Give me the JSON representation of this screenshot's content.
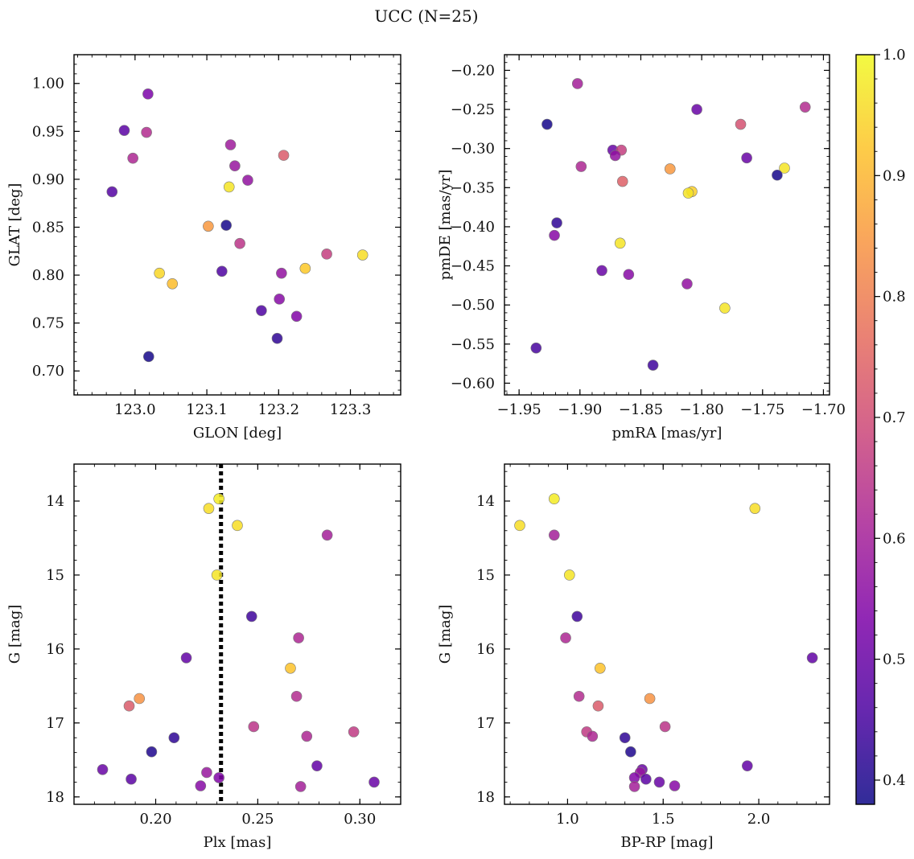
{
  "title": "UCC (N=25)",
  "chart_data": {
    "type": "scatter",
    "title": "UCC (N=25)",
    "colorbar": {
      "colormap": "plasma",
      "range": [
        0.38,
        1.0
      ],
      "ticks": [
        0.4,
        0.5,
        0.6,
        0.7,
        0.8,
        0.9,
        1.0
      ],
      "tick_labels": [
        "0.4",
        "0.5",
        "0.6",
        "0.7",
        "0.8",
        "0.9",
        "1.0"
      ]
    },
    "panels": [
      {
        "xlabel": "GLON [deg]",
        "ylabel": "GLAT [deg]",
        "xlim": [
          122.915,
          123.37
        ],
        "ylim": [
          0.675,
          1.03
        ],
        "y_inverted": false,
        "grid": false,
        "xticks": [
          123.0,
          123.1,
          123.2,
          123.3
        ],
        "xtick_labels": [
          "123.0",
          "123.1",
          "123.2",
          "123.3"
        ],
        "xminor_step": 0.02,
        "yticks": [
          0.7,
          0.75,
          0.8,
          0.85,
          0.9,
          0.95,
          1.0
        ],
        "ytick_labels": [
          "0.70",
          "0.75",
          "0.80",
          "0.85",
          "0.90",
          "0.95",
          "1.00"
        ],
        "yminor_step": 0.01,
        "points": [
          {
            "x": 123.018,
            "y": 0.989,
            "c": 0.53
          },
          {
            "x": 122.985,
            "y": 0.951,
            "c": 0.48
          },
          {
            "x": 123.016,
            "y": 0.949,
            "c": 0.63
          },
          {
            "x": 122.997,
            "y": 0.922,
            "c": 0.62
          },
          {
            "x": 123.133,
            "y": 0.936,
            "c": 0.59
          },
          {
            "x": 123.207,
            "y": 0.925,
            "c": 0.73
          },
          {
            "x": 123.139,
            "y": 0.914,
            "c": 0.58
          },
          {
            "x": 123.157,
            "y": 0.899,
            "c": 0.57
          },
          {
            "x": 123.131,
            "y": 0.892,
            "c": 0.97
          },
          {
            "x": 122.968,
            "y": 0.887,
            "c": 0.47
          },
          {
            "x": 123.127,
            "y": 0.852,
            "c": 0.39
          },
          {
            "x": 123.102,
            "y": 0.851,
            "c": 0.85
          },
          {
            "x": 123.146,
            "y": 0.833,
            "c": 0.65
          },
          {
            "x": 123.267,
            "y": 0.822,
            "c": 0.67
          },
          {
            "x": 123.317,
            "y": 0.821,
            "c": 0.96
          },
          {
            "x": 123.237,
            "y": 0.807,
            "c": 0.93
          },
          {
            "x": 123.121,
            "y": 0.804,
            "c": 0.46
          },
          {
            "x": 123.034,
            "y": 0.802,
            "c": 0.95
          },
          {
            "x": 123.204,
            "y": 0.802,
            "c": 0.57
          },
          {
            "x": 123.052,
            "y": 0.791,
            "c": 0.91
          },
          {
            "x": 123.201,
            "y": 0.775,
            "c": 0.55
          },
          {
            "x": 123.176,
            "y": 0.763,
            "c": 0.46
          },
          {
            "x": 123.225,
            "y": 0.757,
            "c": 0.54
          },
          {
            "x": 123.198,
            "y": 0.734,
            "c": 0.42
          },
          {
            "x": 123.019,
            "y": 0.715,
            "c": 0.39
          }
        ]
      },
      {
        "xlabel": "pmRA [mas/yr]",
        "ylabel": "pmDE [mas/yr]",
        "xlim": [
          -1.962,
          -1.695
        ],
        "ylim": [
          -0.615,
          -0.18
        ],
        "y_inverted": false,
        "grid": false,
        "xticks": [
          -1.95,
          -1.9,
          -1.85,
          -1.8,
          -1.75,
          -1.7
        ],
        "xtick_labels": [
          "−1.95",
          "−1.90",
          "−1.85",
          "−1.80",
          "−1.75",
          "−1.70"
        ],
        "xminor_step": 0.01,
        "yticks": [
          -0.6,
          -0.55,
          -0.5,
          -0.45,
          -0.4,
          -0.35,
          -0.3,
          -0.25,
          -0.2
        ],
        "ytick_labels": [
          "−0.60",
          "−0.55",
          "−0.50",
          "−0.45",
          "−0.40",
          "−0.35",
          "−0.30",
          "−0.25",
          "−0.20"
        ],
        "yminor_step": 0.01,
        "points": [
          {
            "x": -1.902,
            "y": -0.217,
            "c": 0.6
          },
          {
            "x": -1.927,
            "y": -0.269,
            "c": 0.39
          },
          {
            "x": -1.804,
            "y": -0.25,
            "c": 0.5
          },
          {
            "x": -1.715,
            "y": -0.247,
            "c": 0.63
          },
          {
            "x": -1.768,
            "y": -0.269,
            "c": 0.71
          },
          {
            "x": -1.873,
            "y": -0.302,
            "c": 0.5
          },
          {
            "x": -1.866,
            "y": -0.302,
            "c": 0.67
          },
          {
            "x": -1.871,
            "y": -0.309,
            "c": 0.57
          },
          {
            "x": -1.763,
            "y": -0.312,
            "c": 0.5
          },
          {
            "x": -1.899,
            "y": -0.323,
            "c": 0.62
          },
          {
            "x": -1.826,
            "y": -0.326,
            "c": 0.85
          },
          {
            "x": -1.732,
            "y": -0.325,
            "c": 0.97
          },
          {
            "x": -1.738,
            "y": -0.334,
            "c": 0.39
          },
          {
            "x": -1.865,
            "y": -0.342,
            "c": 0.74
          },
          {
            "x": -1.808,
            "y": -0.355,
            "c": 0.94
          },
          {
            "x": -1.811,
            "y": -0.357,
            "c": 0.97
          },
          {
            "x": -1.919,
            "y": -0.395,
            "c": 0.42
          },
          {
            "x": -1.921,
            "y": -0.411,
            "c": 0.55
          },
          {
            "x": -1.867,
            "y": -0.421,
            "c": 0.97
          },
          {
            "x": -1.882,
            "y": -0.456,
            "c": 0.5
          },
          {
            "x": -1.86,
            "y": -0.461,
            "c": 0.55
          },
          {
            "x": -1.812,
            "y": -0.473,
            "c": 0.57
          },
          {
            "x": -1.781,
            "y": -0.504,
            "c": 0.97
          },
          {
            "x": -1.936,
            "y": -0.555,
            "c": 0.45
          },
          {
            "x": -1.84,
            "y": -0.577,
            "c": 0.44
          }
        ]
      },
      {
        "xlabel": "Plx [mas]",
        "ylabel": "G [mag]",
        "xlim": [
          0.16,
          0.32
        ],
        "ylim": [
          18.1,
          13.5
        ],
        "y_inverted": true,
        "grid": false,
        "xticks": [
          0.2,
          0.25,
          0.3
        ],
        "xtick_labels": [
          "0.20",
          "0.25",
          "0.30"
        ],
        "xminor_step": 0.01,
        "yticks": [
          14,
          15,
          16,
          17,
          18
        ],
        "ytick_labels": [
          "14",
          "15",
          "16",
          "17",
          "18"
        ],
        "yminor_step": 0.2,
        "vline": {
          "x": 0.232,
          "style": "dotted",
          "color": "#000000"
        },
        "points": [
          {
            "x": 0.231,
            "y": 13.97,
            "c": 0.98
          },
          {
            "x": 0.226,
            "y": 14.1,
            "c": 0.96
          },
          {
            "x": 0.24,
            "y": 14.33,
            "c": 0.96
          },
          {
            "x": 0.284,
            "y": 14.46,
            "c": 0.6
          },
          {
            "x": 0.23,
            "y": 15.0,
            "c": 0.97
          },
          {
            "x": 0.247,
            "y": 15.56,
            "c": 0.44
          },
          {
            "x": 0.27,
            "y": 15.85,
            "c": 0.62
          },
          {
            "x": 0.215,
            "y": 16.12,
            "c": 0.49
          },
          {
            "x": 0.266,
            "y": 16.26,
            "c": 0.92
          },
          {
            "x": 0.269,
            "y": 16.64,
            "c": 0.63
          },
          {
            "x": 0.192,
            "y": 16.67,
            "c": 0.84
          },
          {
            "x": 0.187,
            "y": 16.77,
            "c": 0.73
          },
          {
            "x": 0.248,
            "y": 17.05,
            "c": 0.65
          },
          {
            "x": 0.297,
            "y": 17.12,
            "c": 0.66
          },
          {
            "x": 0.274,
            "y": 17.18,
            "c": 0.62
          },
          {
            "x": 0.209,
            "y": 17.2,
            "c": 0.42
          },
          {
            "x": 0.198,
            "y": 17.39,
            "c": 0.4
          },
          {
            "x": 0.279,
            "y": 17.58,
            "c": 0.49
          },
          {
            "x": 0.174,
            "y": 17.63,
            "c": 0.5
          },
          {
            "x": 0.225,
            "y": 17.67,
            "c": 0.58
          },
          {
            "x": 0.231,
            "y": 17.74,
            "c": 0.54
          },
          {
            "x": 0.188,
            "y": 17.76,
            "c": 0.48
          },
          {
            "x": 0.307,
            "y": 17.8,
            "c": 0.5
          },
          {
            "x": 0.222,
            "y": 17.85,
            "c": 0.55
          },
          {
            "x": 0.271,
            "y": 17.86,
            "c": 0.6
          }
        ]
      },
      {
        "xlabel": "BP-RP [mag]",
        "ylabel": "G [mag]",
        "xlim": [
          0.67,
          2.37
        ],
        "ylim": [
          18.1,
          13.5
        ],
        "y_inverted": true,
        "grid": false,
        "xticks": [
          1.0,
          1.5,
          2.0
        ],
        "xtick_labels": [
          "1.0",
          "1.5",
          "2.0"
        ],
        "xminor_step": 0.1,
        "yticks": [
          14,
          15,
          16,
          17,
          18
        ],
        "ytick_labels": [
          "14",
          "15",
          "16",
          "17",
          "18"
        ],
        "yminor_step": 0.2,
        "points": [
          {
            "x": 0.93,
            "y": 13.97,
            "c": 0.98
          },
          {
            "x": 1.98,
            "y": 14.1,
            "c": 0.96
          },
          {
            "x": 0.75,
            "y": 14.33,
            "c": 0.96
          },
          {
            "x": 0.93,
            "y": 14.46,
            "c": 0.6
          },
          {
            "x": 1.01,
            "y": 15.0,
            "c": 0.97
          },
          {
            "x": 1.05,
            "y": 15.56,
            "c": 0.44
          },
          {
            "x": 0.99,
            "y": 15.85,
            "c": 0.62
          },
          {
            "x": 2.28,
            "y": 16.12,
            "c": 0.49
          },
          {
            "x": 1.17,
            "y": 16.26,
            "c": 0.92
          },
          {
            "x": 1.06,
            "y": 16.64,
            "c": 0.63
          },
          {
            "x": 1.43,
            "y": 16.67,
            "c": 0.84
          },
          {
            "x": 1.16,
            "y": 16.77,
            "c": 0.73
          },
          {
            "x": 1.51,
            "y": 17.05,
            "c": 0.65
          },
          {
            "x": 1.1,
            "y": 17.12,
            "c": 0.66
          },
          {
            "x": 1.13,
            "y": 17.18,
            "c": 0.62
          },
          {
            "x": 1.3,
            "y": 17.2,
            "c": 0.42
          },
          {
            "x": 1.33,
            "y": 17.39,
            "c": 0.4
          },
          {
            "x": 1.94,
            "y": 17.58,
            "c": 0.49
          },
          {
            "x": 1.39,
            "y": 17.63,
            "c": 0.5
          },
          {
            "x": 1.38,
            "y": 17.67,
            "c": 0.58
          },
          {
            "x": 1.35,
            "y": 17.74,
            "c": 0.54
          },
          {
            "x": 1.41,
            "y": 17.76,
            "c": 0.48
          },
          {
            "x": 1.48,
            "y": 17.8,
            "c": 0.5
          },
          {
            "x": 1.56,
            "y": 17.85,
            "c": 0.55
          },
          {
            "x": 1.35,
            "y": 17.86,
            "c": 0.6
          }
        ]
      }
    ]
  }
}
